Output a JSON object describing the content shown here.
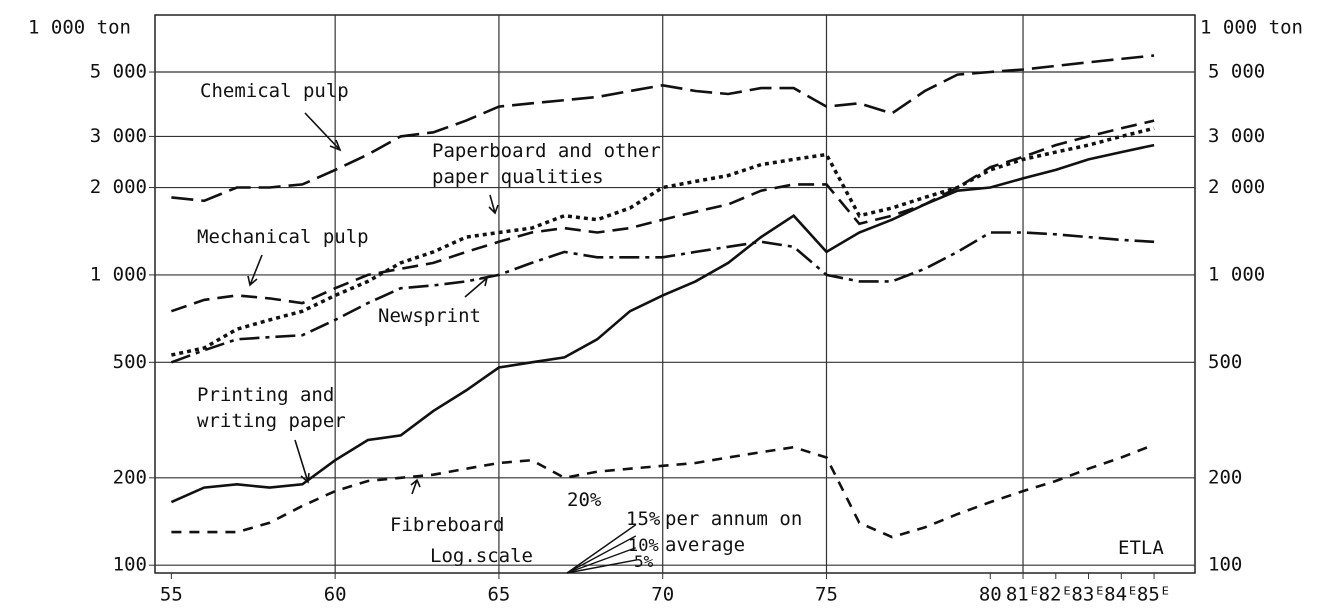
{
  "chart_data": {
    "type": "line",
    "y_unit": "1 000 ton",
    "log_scale": true,
    "xlim": [
      54.5,
      86.25
    ],
    "ylim": [
      94,
      7860
    ],
    "xticks": [
      55,
      60,
      65,
      70,
      75,
      80,
      {
        "value": 81,
        "label": "81ᴱ"
      },
      {
        "value": 82,
        "label": "82ᴱ"
      },
      {
        "value": 83,
        "label": "83ᴱ"
      },
      {
        "value": 84,
        "label": "84ᴱ"
      },
      {
        "value": 85,
        "label": "85ᴱ"
      }
    ],
    "xgrid": [
      60,
      65,
      70,
      75,
      81
    ],
    "yticks": [
      100,
      200,
      500,
      {
        "value": 1000,
        "label": "1 000"
      },
      {
        "value": 2000,
        "label": "2 000"
      },
      {
        "value": 3000,
        "label": "3 000"
      },
      {
        "value": 5000,
        "label": "5 000"
      }
    ],
    "grid": true,
    "x": [
      55,
      56,
      57,
      58,
      59,
      60,
      61,
      62,
      63,
      64,
      65,
      66,
      67,
      68,
      69,
      70,
      71,
      72,
      73,
      74,
      75,
      76,
      77,
      78,
      79,
      80,
      81,
      82,
      83,
      84,
      85
    ],
    "series": [
      {
        "name": "Chemical pulp",
        "color": "#111111",
        "line_style": "long-dash",
        "values": [
          1850,
          1800,
          2000,
          2000,
          2050,
          2300,
          2600,
          3000,
          3100,
          3400,
          3800,
          3900,
          4000,
          4100,
          4300,
          4500,
          4300,
          4200,
          4400,
          4400,
          3800,
          3900,
          3600,
          4300,
          4900,
          5000,
          5100,
          5250,
          5400,
          5550,
          5700
        ]
      },
      {
        "name": "Paperboard and other\npaper qualities",
        "color": "#111111",
        "line_style": "dotted",
        "values": [
          530,
          560,
          650,
          700,
          750,
          850,
          950,
          1100,
          1200,
          1350,
          1400,
          1450,
          1600,
          1550,
          1700,
          2000,
          2100,
          2200,
          2400,
          2500,
          2600,
          1600,
          1700,
          1850,
          2000,
          2300,
          2500,
          2650,
          2800,
          3000,
          3200
        ]
      },
      {
        "name": "Mechanical pulp",
        "color": "#111111",
        "line_style": "dash",
        "values": [
          750,
          820,
          850,
          830,
          800,
          900,
          1000,
          1050,
          1100,
          1200,
          1300,
          1400,
          1450,
          1400,
          1450,
          1550,
          1650,
          1750,
          1950,
          2050,
          2050,
          1500,
          1600,
          1750,
          2000,
          2350,
          2550,
          2800,
          3000,
          3200,
          3400
        ]
      },
      {
        "name": "Newsprint",
        "color": "#111111",
        "line_style": "dash-dot",
        "values": [
          500,
          550,
          600,
          610,
          620,
          700,
          800,
          900,
          920,
          950,
          1000,
          1100,
          1200,
          1150,
          1150,
          1150,
          1200,
          1250,
          1300,
          1250,
          1000,
          950,
          950,
          1050,
          1200,
          1400,
          1400,
          1380,
          1350,
          1320,
          1300
        ]
      },
      {
        "name": "Printing and\nwriting paper",
        "color": "#111111",
        "line_style": "solid",
        "values": [
          165,
          185,
          190,
          185,
          190,
          230,
          270,
          280,
          340,
          400,
          480,
          500,
          520,
          600,
          750,
          850,
          950,
          1100,
          1350,
          1600,
          1200,
          1400,
          1550,
          1750,
          1950,
          2000,
          2150,
          2300,
          2500,
          2650,
          2800
        ]
      },
      {
        "name": "Fibreboard",
        "color": "#111111",
        "line_style": "short-dash",
        "values": [
          130,
          130,
          130,
          140,
          160,
          180,
          195,
          200,
          205,
          215,
          225,
          230,
          200,
          210,
          215,
          220,
          225,
          235,
          245,
          255,
          235,
          140,
          125,
          135,
          150,
          165,
          180,
          195,
          215,
          235,
          260
        ]
      }
    ],
    "growth_rates": [
      {
        "value": 20,
        "label": "20%"
      },
      {
        "value": 15,
        "label": "15%"
      },
      {
        "value": 10,
        "label": "10%"
      },
      {
        "value": 5,
        "label": "5%"
      }
    ],
    "growth_note": "per annum on\naverage",
    "scale_note": "Log.scale",
    "source": "ETLA"
  }
}
